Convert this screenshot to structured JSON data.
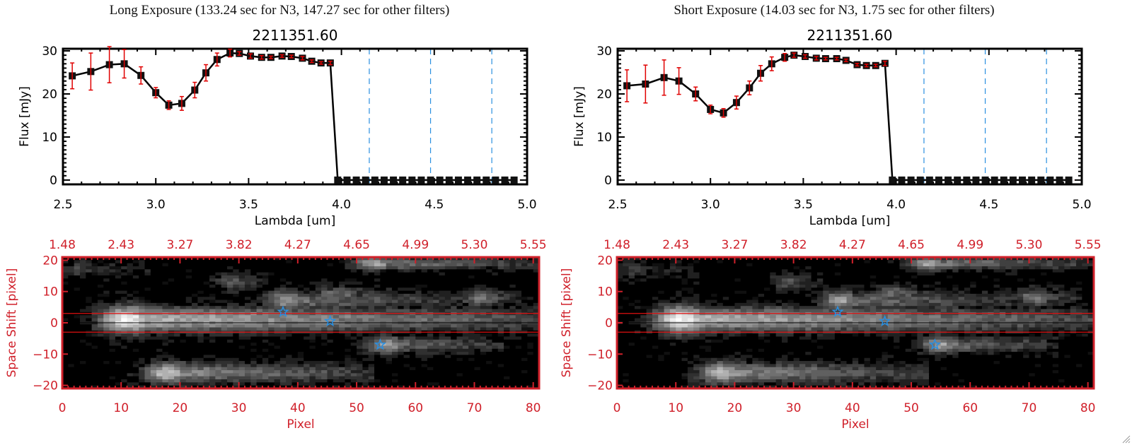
{
  "panels": [
    {
      "exposure_title": "Long Exposure (133.24 sec for N3, 147.27 sec for other filters)",
      "spectrum_title": "2211351.60",
      "heatmap_id": "long"
    },
    {
      "exposure_title": "Short Exposure (14.03 sec for N3, 1.75 sec for other filters)",
      "spectrum_title": "2211351.60",
      "heatmap_id": "short"
    }
  ],
  "colors": {
    "line": "#000000",
    "errorbar": "#e00000",
    "filter_dashed": "#2a8fe0",
    "zero_dashed": "#e00000",
    "heatmap_axis": "#d0202a",
    "star": "#2a8fe0",
    "aperture_line": "#e01010"
  },
  "chart_data": [
    {
      "type": "line",
      "title": "2211351.60",
      "xlabel": "Lambda [um]",
      "ylabel": "Flux [mJy]",
      "xlim": [
        2.5,
        5.0
      ],
      "ylim": [
        -1,
        30.5
      ],
      "xticks": [
        "2.5",
        "3.0",
        "3.5",
        "4.0",
        "4.5",
        "5.0"
      ],
      "xtick_values": [
        2.5,
        3.0,
        3.5,
        4.0,
        4.5,
        5.0
      ],
      "yticks": [
        "0",
        "10",
        "20",
        "30"
      ],
      "ytick_values": [
        0,
        10,
        20,
        30
      ],
      "filter_lines_x": [
        4.15,
        4.48,
        4.81
      ],
      "zero_line_y": 0,
      "series": [
        {
          "name": "Long Exposure flux",
          "x": [
            2.55,
            2.65,
            2.75,
            2.83,
            2.92,
            3.0,
            3.07,
            3.14,
            3.21,
            3.27,
            3.33,
            3.4,
            3.45,
            3.51,
            3.57,
            3.62,
            3.68,
            3.73,
            3.79,
            3.84,
            3.89,
            3.94,
            3.98,
            4.03,
            4.08,
            4.13,
            4.18,
            4.23,
            4.28,
            4.33,
            4.38,
            4.43,
            4.48,
            4.53,
            4.58,
            4.63,
            4.68,
            4.73,
            4.78,
            4.83,
            4.88,
            4.93
          ],
          "y": [
            24.2,
            25.2,
            26.8,
            27.0,
            24.3,
            20.3,
            17.4,
            17.8,
            20.9,
            24.9,
            28.0,
            29.5,
            29.4,
            28.8,
            28.5,
            28.5,
            28.8,
            28.7,
            28.3,
            27.6,
            27.2,
            27.2,
            0,
            0,
            0,
            0,
            0,
            0,
            0,
            0,
            0,
            0,
            0,
            0,
            0,
            0,
            0,
            0,
            0,
            0,
            0,
            0
          ],
          "err": [
            3.0,
            4.3,
            4.2,
            3.3,
            2.0,
            1.2,
            1.0,
            1.6,
            1.8,
            1.9,
            1.5,
            0.9,
            0.4,
            0.5,
            0.4,
            0.3,
            0.3,
            0.3,
            0.4,
            0.3,
            0.3,
            0.4,
            0,
            0,
            0,
            0,
            0,
            0,
            0,
            0,
            0,
            0,
            0,
            0,
            0,
            0,
            0,
            0,
            0,
            0,
            0,
            0
          ]
        }
      ]
    },
    {
      "type": "line",
      "title": "2211351.60",
      "xlabel": "Lambda [um]",
      "ylabel": "Flux [mJy]",
      "xlim": [
        2.5,
        5.0
      ],
      "ylim": [
        -1,
        30.5
      ],
      "xticks": [
        "2.5",
        "3.0",
        "3.5",
        "4.0",
        "4.5",
        "5.0"
      ],
      "xtick_values": [
        2.5,
        3.0,
        3.5,
        4.0,
        4.5,
        5.0
      ],
      "yticks": [
        "0",
        "10",
        "20",
        "30"
      ],
      "ytick_values": [
        0,
        10,
        20,
        30
      ],
      "filter_lines_x": [
        4.15,
        4.48,
        4.81
      ],
      "zero_line_y": 0,
      "series": [
        {
          "name": "Short Exposure flux",
          "x": [
            2.55,
            2.65,
            2.75,
            2.83,
            2.92,
            3.0,
            3.07,
            3.14,
            3.21,
            3.27,
            3.33,
            3.4,
            3.45,
            3.51,
            3.57,
            3.62,
            3.68,
            3.73,
            3.79,
            3.84,
            3.89,
            3.94,
            3.98,
            4.03,
            4.08,
            4.13,
            4.18,
            4.23,
            4.28,
            4.33,
            4.38,
            4.43,
            4.48,
            4.53,
            4.58,
            4.63,
            4.68,
            4.73,
            4.78,
            4.83,
            4.88,
            4.93
          ],
          "y": [
            21.9,
            22.3,
            23.8,
            23.0,
            20.0,
            16.4,
            15.6,
            18.0,
            21.4,
            24.8,
            27.0,
            28.5,
            29.0,
            28.7,
            28.3,
            28.2,
            28.2,
            27.8,
            26.8,
            26.6,
            26.6,
            27.1,
            0,
            0,
            0,
            0,
            0,
            0,
            0,
            0,
            0,
            0,
            0,
            0,
            0,
            0,
            0,
            0,
            0,
            0,
            0,
            0
          ],
          "err": [
            3.7,
            4.4,
            4.1,
            3.1,
            1.6,
            1.0,
            1.0,
            1.5,
            1.6,
            1.8,
            1.6,
            0.9,
            0.5,
            0.4,
            0.4,
            0.3,
            0.3,
            0.3,
            0.3,
            0.3,
            0.3,
            0.5,
            0,
            0,
            0,
            0,
            0,
            0,
            0,
            0,
            0,
            0,
            0,
            0,
            0,
            0,
            0,
            0,
            0,
            0,
            0,
            0
          ]
        }
      ]
    },
    {
      "type": "heatmap",
      "xlabel": "Pixel",
      "ylabel": "Space Shift [pixel]",
      "xlim": [
        0,
        81
      ],
      "ylim": [
        -21,
        21
      ],
      "xticks": [
        "0",
        "10",
        "20",
        "30",
        "40",
        "50",
        "60",
        "70",
        "80"
      ],
      "xtick_values": [
        0,
        10,
        20,
        30,
        40,
        50,
        60,
        70,
        80
      ],
      "yticks": [
        "-20",
        "-10",
        "0",
        "10",
        "20"
      ],
      "ytick_values": [
        -20,
        -10,
        0,
        10,
        20
      ],
      "top_axis_label_values": [
        "1.48",
        "2.43",
        "3.27",
        "3.82",
        "4.27",
        "4.65",
        "4.99",
        "5.30",
        "5.55"
      ],
      "aperture_lines_y": [
        3,
        -3
      ],
      "center_line_y": 0,
      "stars": [
        {
          "x": 37.5,
          "y": 3.5
        },
        {
          "x": 45.5,
          "y": 0.5
        },
        {
          "x": 54,
          "y": -7
        }
      ],
      "sources": [
        {
          "x": 11,
          "y": 1,
          "peak": 1.0,
          "sx": 3.2,
          "sy": 3.0,
          "trail": 70
        },
        {
          "x": 18,
          "y": -16,
          "peak": 0.75,
          "sx": 3,
          "sy": 2.4,
          "trail": 35
        },
        {
          "x": 38,
          "y": 7,
          "peak": 0.6,
          "sx": 2.5,
          "sy": 2.3,
          "trail": 30
        },
        {
          "x": 53,
          "y": 19,
          "peak": 0.65,
          "sx": 2.5,
          "sy": 1.6,
          "trail": 28
        },
        {
          "x": 55,
          "y": -7,
          "peak": 0.6,
          "sx": 2.5,
          "sy": 2,
          "trail": 20
        },
        {
          "x": 29,
          "y": 13,
          "peak": 0.35,
          "sx": 2,
          "sy": 2,
          "trail": 6
        },
        {
          "x": 71,
          "y": 8,
          "peak": 0.45,
          "sx": 2.5,
          "sy": 2,
          "trail": 8
        },
        {
          "x": 3,
          "y": 17,
          "peak": 0.25,
          "sx": 2,
          "sy": 2,
          "trail": 12
        },
        {
          "x": 47,
          "y": 9,
          "peak": 0.4,
          "sx": 3,
          "sy": 2,
          "trail": 14
        }
      ]
    }
  ]
}
